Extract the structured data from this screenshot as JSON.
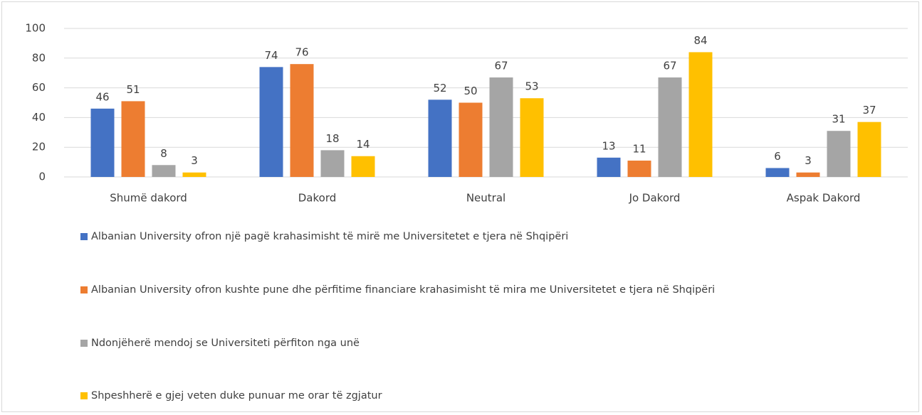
{
  "chart_data": {
    "type": "bar",
    "categories": [
      "Shumë dakord",
      "Dakord",
      "Neutral",
      "Jo Dakord",
      "Aspak Dakord"
    ],
    "series": [
      {
        "name": "Albanian University ofron një pagë krahasimisht të mirë me Universitetet e tjera në Shqipëri",
        "color": "#4472c4",
        "values": [
          46,
          74,
          52,
          13,
          6
        ]
      },
      {
        "name": "Albanian University ofron kushte pune dhe përfitime financiare krahasimisht të mira me Universitetet e tjera në Shqipëri",
        "color": "#ed7d31",
        "values": [
          51,
          76,
          50,
          11,
          3
        ]
      },
      {
        "name": "Ndonjëherë mendoj se Universiteti përfiton nga unë",
        "color": "#a5a5a5",
        "values": [
          8,
          18,
          67,
          67,
          31
        ]
      },
      {
        "name": "Shpeshherë e gjej veten duke punuar me orar të zgjatur",
        "color": "#ffc000",
        "values": [
          3,
          14,
          53,
          84,
          37
        ]
      }
    ],
    "ylim": [
      0,
      100
    ],
    "yticks": [
      0,
      20,
      40,
      60,
      80,
      100
    ],
    "grid": true,
    "legend": "bottom"
  }
}
